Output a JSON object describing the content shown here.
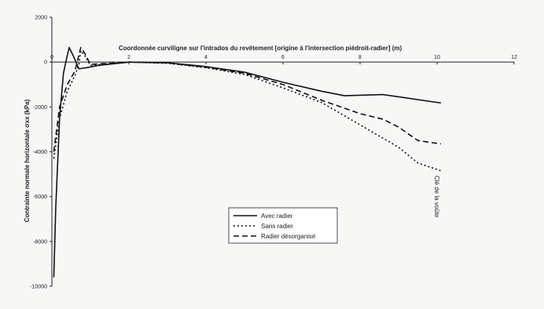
{
  "chart_data": {
    "type": "line",
    "xlabel": "Coordonnée curviligne sur l'intrados du revêtement [origine à l'intersection piédroit-radier] (m)",
    "ylabel": "Contrainte normale horizontale σxx (kPa)",
    "xlim": [
      0,
      12
    ],
    "ylim": [
      -10000,
      2000
    ],
    "x_ticks": [
      "0",
      "2",
      "4",
      "6",
      "8",
      "10",
      "12"
    ],
    "y_ticks": [
      "2000",
      "0",
      "-2000",
      "-4000",
      "-6000",
      "-8000",
      "-10000"
    ],
    "grid": false,
    "legend_position": "center-bottom",
    "annotation": "Clé de la voûte",
    "series": [
      {
        "name": "Avec radier",
        "style": "solid",
        "points": [
          [
            0.05,
            -9600
          ],
          [
            0.1,
            -6500
          ],
          [
            0.2,
            -2500
          ],
          [
            0.3,
            -500
          ],
          [
            0.4,
            300
          ],
          [
            0.45,
            650
          ],
          [
            0.55,
            300
          ],
          [
            0.7,
            -300
          ],
          [
            0.9,
            -250
          ],
          [
            1.2,
            -150
          ],
          [
            2,
            0
          ],
          [
            3,
            -30
          ],
          [
            4,
            -200
          ],
          [
            5,
            -450
          ],
          [
            6,
            -900
          ],
          [
            7,
            -1300
          ],
          [
            7.6,
            -1500
          ],
          [
            8,
            -1480
          ],
          [
            8.6,
            -1450
          ],
          [
            9,
            -1550
          ],
          [
            10,
            -1800
          ],
          [
            10.1,
            -1820
          ]
        ]
      },
      {
        "name": "Sans radier",
        "style": "dotted",
        "points": [
          [
            0.05,
            -4300
          ],
          [
            0.2,
            -2500
          ],
          [
            0.4,
            -1300
          ],
          [
            0.6,
            -600
          ],
          [
            0.7,
            -100
          ],
          [
            0.75,
            500
          ],
          [
            0.85,
            300
          ],
          [
            1,
            -150
          ],
          [
            2,
            0
          ],
          [
            3,
            -50
          ],
          [
            4,
            -250
          ],
          [
            5,
            -550
          ],
          [
            6,
            -1150
          ],
          [
            7,
            -1800
          ],
          [
            8,
            -2800
          ],
          [
            9,
            -3800
          ],
          [
            9.5,
            -4500
          ],
          [
            10.1,
            -4850
          ]
        ]
      },
      {
        "name": "Radier désorganisé",
        "style": "dashed",
        "points": [
          [
            0.05,
            -4000
          ],
          [
            0.2,
            -2000
          ],
          [
            0.4,
            -1000
          ],
          [
            0.6,
            -400
          ],
          [
            0.7,
            300
          ],
          [
            0.75,
            650
          ],
          [
            0.85,
            400
          ],
          [
            1,
            -100
          ],
          [
            2,
            0
          ],
          [
            3,
            -40
          ],
          [
            4,
            -230
          ],
          [
            5,
            -500
          ],
          [
            6,
            -1000
          ],
          [
            7,
            -1700
          ],
          [
            8,
            -2300
          ],
          [
            8.6,
            -2550
          ],
          [
            9,
            -2900
          ],
          [
            9.5,
            -3500
          ],
          [
            10.1,
            -3650
          ]
        ]
      }
    ]
  }
}
